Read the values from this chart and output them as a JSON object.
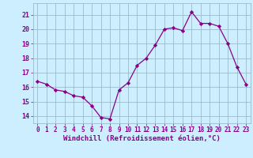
{
  "hours": [
    0,
    1,
    2,
    3,
    4,
    5,
    6,
    7,
    8,
    9,
    10,
    11,
    12,
    13,
    14,
    15,
    16,
    17,
    18,
    19,
    20,
    21,
    22,
    23
  ],
  "values": [
    16.4,
    16.2,
    15.8,
    15.7,
    15.4,
    15.3,
    14.7,
    13.9,
    13.8,
    15.8,
    16.3,
    17.5,
    18.0,
    18.9,
    20.0,
    20.1,
    19.9,
    21.2,
    20.4,
    20.4,
    20.2,
    19.0,
    17.4,
    16.2
  ],
  "line_color": "#880088",
  "marker": "D",
  "marker_size": 2.2,
  "bg_color": "#cceeff",
  "grid_color": "#99bbcc",
  "ylabel_ticks": [
    14,
    15,
    16,
    17,
    18,
    19,
    20,
    21
  ],
  "xlabel": "Windchill (Refroidissement éolien,°C)",
  "ylim": [
    13.5,
    21.8
  ],
  "xlim": [
    -0.5,
    23.5
  ],
  "tick_label_color": "#880088",
  "axis_label_color": "#880088",
  "tick_fontsize": 5.5,
  "xlabel_fontsize": 6.5
}
